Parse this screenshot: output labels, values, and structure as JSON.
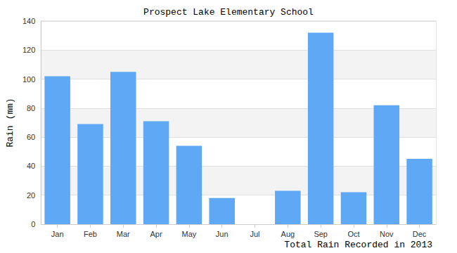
{
  "chart_data": {
    "type": "bar",
    "title": "Prospect Lake Elementary School",
    "x_label": "Total Rain Recorded in 2013",
    "y_label": "Rain (mm)",
    "categories": [
      "Jan",
      "Feb",
      "Mar",
      "Apr",
      "May",
      "Jun",
      "Jul",
      "Aug",
      "Sep",
      "Oct",
      "Nov",
      "Dec"
    ],
    "values": [
      102,
      69,
      105,
      71,
      54,
      18,
      0,
      23,
      132,
      22,
      82,
      45
    ],
    "color": "#5ea8f5",
    "ylim": [
      0,
      140
    ],
    "yticks": [
      0,
      20,
      40,
      60,
      80,
      100,
      120,
      140
    ],
    "grid": true
  }
}
